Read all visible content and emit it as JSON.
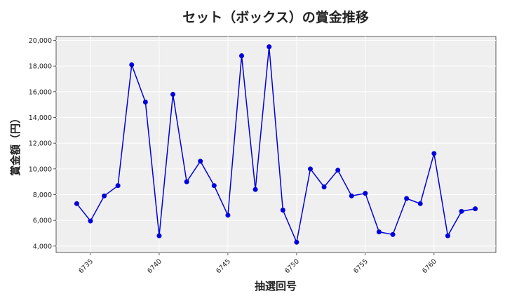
{
  "chart_data": {
    "type": "line",
    "title": "セット（ボックス）の賞金推移",
    "xlabel": "抽選回号",
    "ylabel": "賞金額（円）",
    "xlim": [
      6732.5,
      6764.5
    ],
    "ylim": [
      3500,
      20300
    ],
    "x_ticks": [
      6735,
      6740,
      6745,
      6750,
      6755,
      6760
    ],
    "y_ticks": [
      4000,
      6000,
      8000,
      10000,
      12000,
      14000,
      16000,
      18000,
      20000
    ],
    "y_tick_labels": [
      "4,000",
      "6,000",
      "8,000",
      "10,000",
      "12,000",
      "14,000",
      "16,000",
      "18,000",
      "20,000"
    ],
    "grid": true,
    "series": [
      {
        "color": "#0000dd",
        "x": [
          6734,
          6735,
          6736,
          6737,
          6738,
          6739,
          6740,
          6741,
          6742,
          6743,
          6744,
          6745,
          6746,
          6747,
          6748,
          6749,
          6750,
          6751,
          6752,
          6753,
          6754,
          6755,
          6756,
          6757,
          6758,
          6759,
          6760,
          6761,
          6762,
          6763
        ],
        "y": [
          7300,
          5950,
          7900,
          8700,
          18100,
          15200,
          4800,
          15800,
          9000,
          10600,
          8700,
          6400,
          18800,
          8400,
          19500,
          6800,
          4300,
          10000,
          8600,
          9900,
          7900,
          8100,
          5100,
          4900,
          7700,
          7300,
          11200,
          4800,
          6700,
          6900
        ]
      }
    ]
  }
}
